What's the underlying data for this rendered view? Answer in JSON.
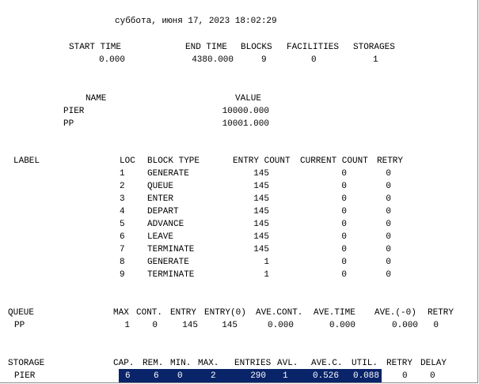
{
  "report": {
    "timestamp": "суббота, июня 17, 2023 18:02:29"
  },
  "summary": {
    "headers": [
      "START TIME",
      "END TIME",
      "BLOCKS",
      "FACILITIES",
      "STORAGES"
    ],
    "values": [
      "0.000",
      "4380.000",
      "9",
      "0",
      "1"
    ]
  },
  "names": {
    "headers": [
      "NAME",
      "VALUE"
    ],
    "rows": [
      {
        "name": "PIER",
        "value": "10000.000"
      },
      {
        "name": "PP",
        "value": "10001.000"
      }
    ]
  },
  "blocks": {
    "headers": [
      "LABEL",
      "LOC",
      "BLOCK TYPE",
      "ENTRY COUNT",
      "CURRENT COUNT",
      "RETRY"
    ],
    "rows": [
      {
        "loc": "1",
        "type": "GENERATE",
        "entry": "145",
        "current": "0",
        "retry": "0"
      },
      {
        "loc": "2",
        "type": "QUEUE",
        "entry": "145",
        "current": "0",
        "retry": "0"
      },
      {
        "loc": "3",
        "type": "ENTER",
        "entry": "145",
        "current": "0",
        "retry": "0"
      },
      {
        "loc": "4",
        "type": "DEPART",
        "entry": "145",
        "current": "0",
        "retry": "0"
      },
      {
        "loc": "5",
        "type": "ADVANCE",
        "entry": "145",
        "current": "0",
        "retry": "0"
      },
      {
        "loc": "6",
        "type": "LEAVE",
        "entry": "145",
        "current": "0",
        "retry": "0"
      },
      {
        "loc": "7",
        "type": "TERMINATE",
        "entry": "145",
        "current": "0",
        "retry": "0"
      },
      {
        "loc": "8",
        "type": "GENERATE",
        "entry": "1",
        "current": "0",
        "retry": "0"
      },
      {
        "loc": "9",
        "type": "TERMINATE",
        "entry": "1",
        "current": "0",
        "retry": "0"
      }
    ]
  },
  "queue": {
    "headers": [
      "QUEUE",
      "MAX",
      "CONT.",
      "ENTRY",
      "ENTRY(0)",
      "AVE.CONT.",
      "AVE.TIME",
      "AVE.(-0)",
      "RETRY"
    ],
    "row": [
      "PP",
      "1",
      "0",
      "145",
      "145",
      "0.000",
      "0.000",
      "0.000",
      "0"
    ]
  },
  "storage": {
    "headers": [
      "STORAGE",
      "CAP.",
      "REM.",
      "MIN.",
      "MAX.",
      "ENTRIES",
      "AVL.",
      "AVE.C.",
      "UTIL.",
      "RETRY",
      "DELAY"
    ],
    "row": [
      "PIER",
      "6",
      "6",
      "0",
      "2",
      "290",
      "1",
      "0.526",
      "0.088",
      "0",
      "0"
    ]
  },
  "selection_color": "#0a246a"
}
